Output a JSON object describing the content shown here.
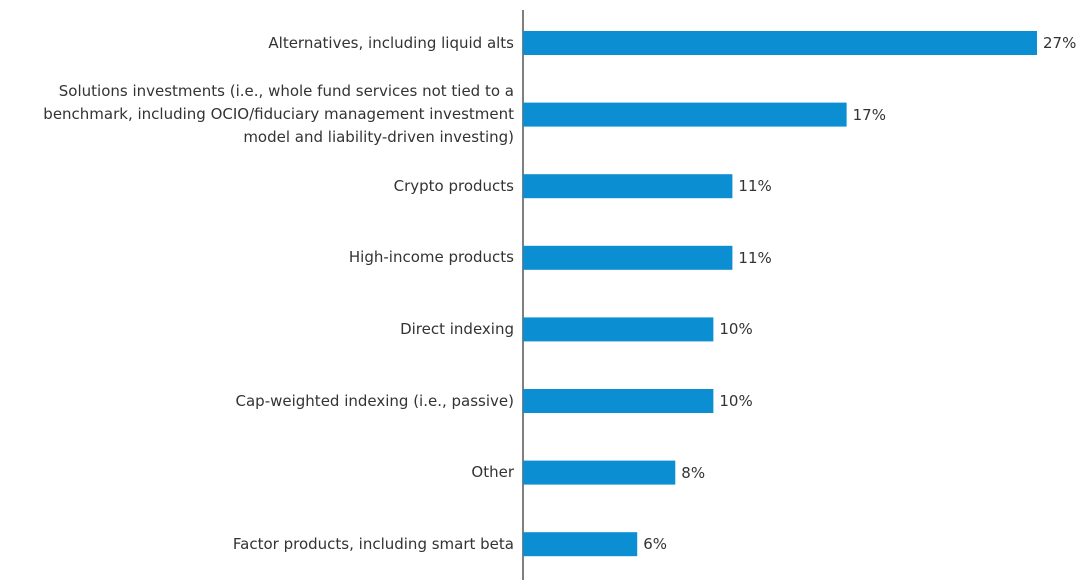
{
  "chart_data": {
    "type": "bar",
    "orientation": "horizontal",
    "categories": [
      "Alternatives, including liquid alts",
      "Solutions investments (i.e., whole fund services not tied to a benchmark, including OCIO/fiduciary management investment model and liability-driven investing)",
      "Crypto products",
      "High-income products",
      "Direct indexing",
      "Cap-weighted indexing (i.e., passive)",
      "Other",
      "Factor products, including smart beta"
    ],
    "values": [
      27,
      17,
      11,
      11,
      10,
      10,
      8,
      6
    ],
    "value_labels": [
      "27%",
      "17%",
      "11%",
      "11%",
      "10%",
      "10%",
      "8%",
      "6%"
    ],
    "color": "#0b8fd2"
  }
}
